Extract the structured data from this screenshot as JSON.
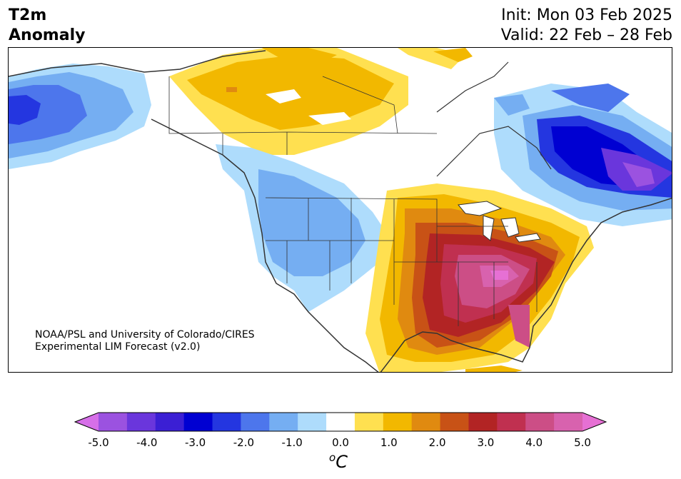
{
  "title": {
    "variable": "T2m",
    "subtitle": "Anomaly",
    "init": "Init: Mon 03 Feb 2025",
    "valid": "Valid: 22 Feb – 28 Feb"
  },
  "credit": {
    "line1": "NOAA/PSL and University of Colorado/CIRES",
    "line2": "Experimental LIM Forecast (v2.0)"
  },
  "colorbar": {
    "unit_sup": "o",
    "unit": "C",
    "levels": [
      -5.0,
      -4.5,
      -4.0,
      -3.5,
      -3.0,
      -2.5,
      -2.0,
      -1.5,
      -1.0,
      -0.5,
      0.5,
      1.0,
      1.5,
      2.0,
      2.5,
      3.0,
      3.5,
      4.0,
      4.5,
      5.0
    ],
    "ticks": [
      "-5.0",
      "-4.0",
      "-3.0",
      "-2.0",
      "-1.0",
      "0.0",
      "1.0",
      "2.0",
      "3.0",
      "4.0",
      "5.0"
    ],
    "colors": [
      "#d66fe8",
      "#9b52e0",
      "#6a36dc",
      "#3b1fd4",
      "#0000d2",
      "#2436e0",
      "#4d76ec",
      "#75aef2",
      "#aedcfc",
      "#ffffff",
      "#ffe050",
      "#f2b800",
      "#e08a10",
      "#c85216",
      "#b22424",
      "#c03050",
      "#cc4e86",
      "#d862ae",
      "#e670d4"
    ]
  },
  "icons": {
    "map": "north-america-map-icon"
  }
}
